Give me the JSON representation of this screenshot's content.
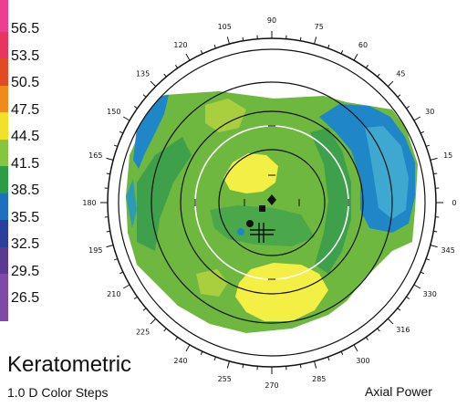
{
  "scale": {
    "values": [
      "56.5",
      "53.5",
      "50.5",
      "47.5",
      "44.5",
      "41.5",
      "38.5",
      "35.5",
      "32.5",
      "29.5",
      "26.5"
    ],
    "colors": [
      "#ee3e8e",
      "#e7355e",
      "#e24a24",
      "#f08a1c",
      "#f2e12a",
      "#86c442",
      "#2c9c45",
      "#1f6fc0",
      "#2d3f9e",
      "#5a3894",
      "#7d4aa8"
    ]
  },
  "axis_labels": [
    "0",
    "15",
    "30",
    "45",
    "60",
    "75",
    "90",
    "105",
    "120",
    "135",
    "150",
    "165",
    "180",
    "195",
    "210",
    "225",
    "240",
    "255",
    "270",
    "285",
    "300",
    "316",
    "330",
    "345"
  ],
  "footer": {
    "mode": "Keratometric",
    "steps": "1.0 D Color Steps",
    "map_type": "Axial Power"
  }
}
